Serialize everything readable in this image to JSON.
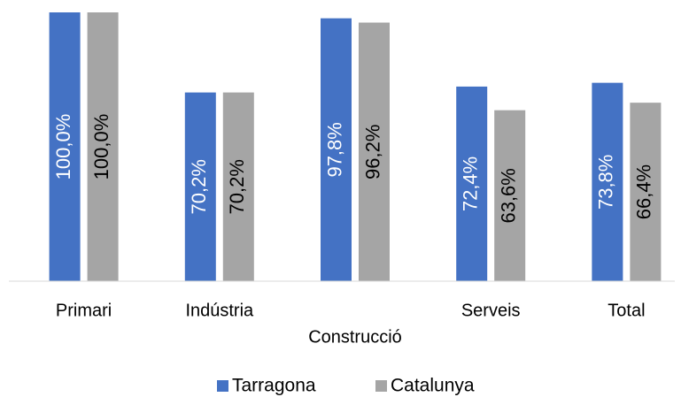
{
  "chart_data": {
    "type": "bar",
    "categories": [
      "Primari",
      "Indústria",
      "Construcció",
      "Serveis",
      "Total"
    ],
    "series": [
      {
        "name": "Tarragona",
        "color": "#4472c4",
        "values": [
          100,
          70.2,
          97.8,
          72.4,
          73.8
        ],
        "value_labels": [
          "100,0%",
          "70,2%",
          "97,8%",
          "72,4%",
          "73,8%"
        ]
      },
      {
        "name": "Catalunya",
        "color": "#a5a5a5",
        "values": [
          100,
          70.2,
          96.2,
          63.6,
          66.4
        ],
        "value_labels": [
          "100,0%",
          "70,2%",
          "96,2%",
          "63,6%",
          "66,4%"
        ]
      }
    ],
    "ylim": [
      0,
      100
    ],
    "legend": "bottom"
  }
}
